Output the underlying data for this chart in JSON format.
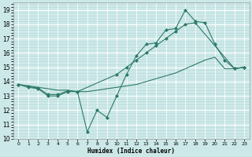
{
  "line1_x": [
    0,
    1,
    2,
    3,
    4,
    5,
    6,
    7,
    8,
    9,
    10,
    11,
    12,
    13,
    14,
    15,
    16,
    17,
    18,
    19,
    20,
    21,
    22,
    23
  ],
  "line1_y": [
    13.8,
    13.6,
    13.5,
    13.0,
    13.0,
    13.3,
    13.3,
    10.5,
    12.0,
    11.5,
    13.0,
    14.5,
    15.8,
    16.6,
    16.7,
    17.6,
    17.7,
    19.0,
    18.2,
    18.1,
    16.6,
    15.5,
    14.9,
    15.0
  ],
  "line2_x": [
    0,
    1,
    2,
    3,
    4,
    5,
    6,
    10,
    11,
    12,
    13,
    14,
    15,
    16,
    17,
    18,
    22,
    23
  ],
  "line2_y": [
    13.8,
    13.65,
    13.55,
    13.1,
    13.1,
    13.35,
    13.3,
    14.5,
    15.0,
    15.5,
    16.0,
    16.5,
    17.0,
    17.5,
    18.0,
    18.1,
    14.9,
    15.0
  ],
  "line3_x": [
    0,
    1,
    2,
    3,
    4,
    5,
    6,
    7,
    8,
    9,
    10,
    11,
    12,
    13,
    14,
    15,
    16,
    17,
    18,
    19,
    20,
    21,
    22,
    23
  ],
  "line3_y": [
    13.8,
    13.7,
    13.6,
    13.5,
    13.4,
    13.4,
    13.3,
    13.3,
    13.4,
    13.5,
    13.6,
    13.7,
    13.8,
    14.0,
    14.2,
    14.4,
    14.6,
    14.9,
    15.2,
    15.5,
    15.7,
    14.9,
    14.9,
    15.0
  ],
  "line_color": "#2d7a68",
  "bg_color": "#cce8e8",
  "grid_major_color": "#ffffff",
  "grid_minor_color": "#b8d8d8",
  "xlabel": "Humidex (Indice chaleur)",
  "ylim": [
    10,
    19.5
  ],
  "xlim": [
    -0.5,
    23.5
  ],
  "yticks": [
    10,
    11,
    12,
    13,
    14,
    15,
    16,
    17,
    18,
    19
  ],
  "xticks": [
    0,
    1,
    2,
    3,
    4,
    5,
    6,
    7,
    8,
    9,
    10,
    11,
    12,
    13,
    14,
    15,
    16,
    17,
    18,
    19,
    20,
    21,
    22,
    23
  ]
}
